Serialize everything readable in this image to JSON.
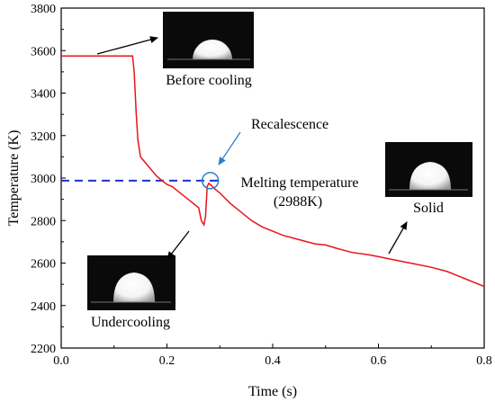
{
  "chart_data": {
    "type": "line",
    "title": "",
    "xlabel": "Time (s)",
    "ylabel": "Temperature (K)",
    "xlim": [
      0.0,
      0.8
    ],
    "ylim": [
      2200,
      3800
    ],
    "xticks": [
      0.0,
      0.2,
      0.4,
      0.6,
      0.8
    ],
    "xtick_labels": [
      "0.0",
      "0.2",
      "0.4",
      "0.6",
      "0.8"
    ],
    "yticks": [
      2200,
      2400,
      2600,
      2800,
      3000,
      3200,
      3400,
      3600,
      3800
    ],
    "ytick_labels": [
      "2200",
      "2400",
      "2600",
      "2800",
      "3000",
      "3200",
      "3400",
      "3600",
      "3800"
    ],
    "grid": false,
    "series": [
      {
        "name": "",
        "color": "#e8141e",
        "x": [
          0.0,
          0.135,
          0.138,
          0.142,
          0.145,
          0.15,
          0.16,
          0.17,
          0.18,
          0.19,
          0.2,
          0.21,
          0.22,
          0.23,
          0.24,
          0.25,
          0.26,
          0.265,
          0.27,
          0.273,
          0.276,
          0.279,
          0.283,
          0.29,
          0.3,
          0.32,
          0.34,
          0.36,
          0.38,
          0.4,
          0.42,
          0.45,
          0.48,
          0.5,
          0.52,
          0.55,
          0.58,
          0.6,
          0.63,
          0.66,
          0.7,
          0.73,
          0.76,
          0.78,
          0.8
        ],
        "y": [
          3575,
          3575,
          3500,
          3300,
          3180,
          3100,
          3070,
          3040,
          3010,
          2990,
          2970,
          2960,
          2940,
          2920,
          2900,
          2880,
          2860,
          2800,
          2780,
          2820,
          2960,
          2975,
          2968,
          2950,
          2930,
          2880,
          2840,
          2800,
          2770,
          2750,
          2730,
          2710,
          2690,
          2685,
          2670,
          2650,
          2640,
          2630,
          2615,
          2600,
          2580,
          2560,
          2530,
          2510,
          2490
        ]
      }
    ],
    "reference_line": {
      "y": 2988,
      "x_range": [
        0.0,
        0.3
      ],
      "style": "dashed",
      "color": "#1f2fcf"
    },
    "marker_circle": {
      "x": 0.282,
      "y": 2988,
      "color": "#2a7fc9"
    },
    "annotations": [
      {
        "id": "before",
        "text": "Before cooling"
      },
      {
        "id": "recal",
        "text": "Recalescence"
      },
      {
        "id": "melt1",
        "text": "Melting temperature"
      },
      {
        "id": "melt2",
        "text": "(2988K)"
      },
      {
        "id": "solid",
        "text": "Solid"
      },
      {
        "id": "under",
        "text": "Undercooling"
      }
    ]
  }
}
